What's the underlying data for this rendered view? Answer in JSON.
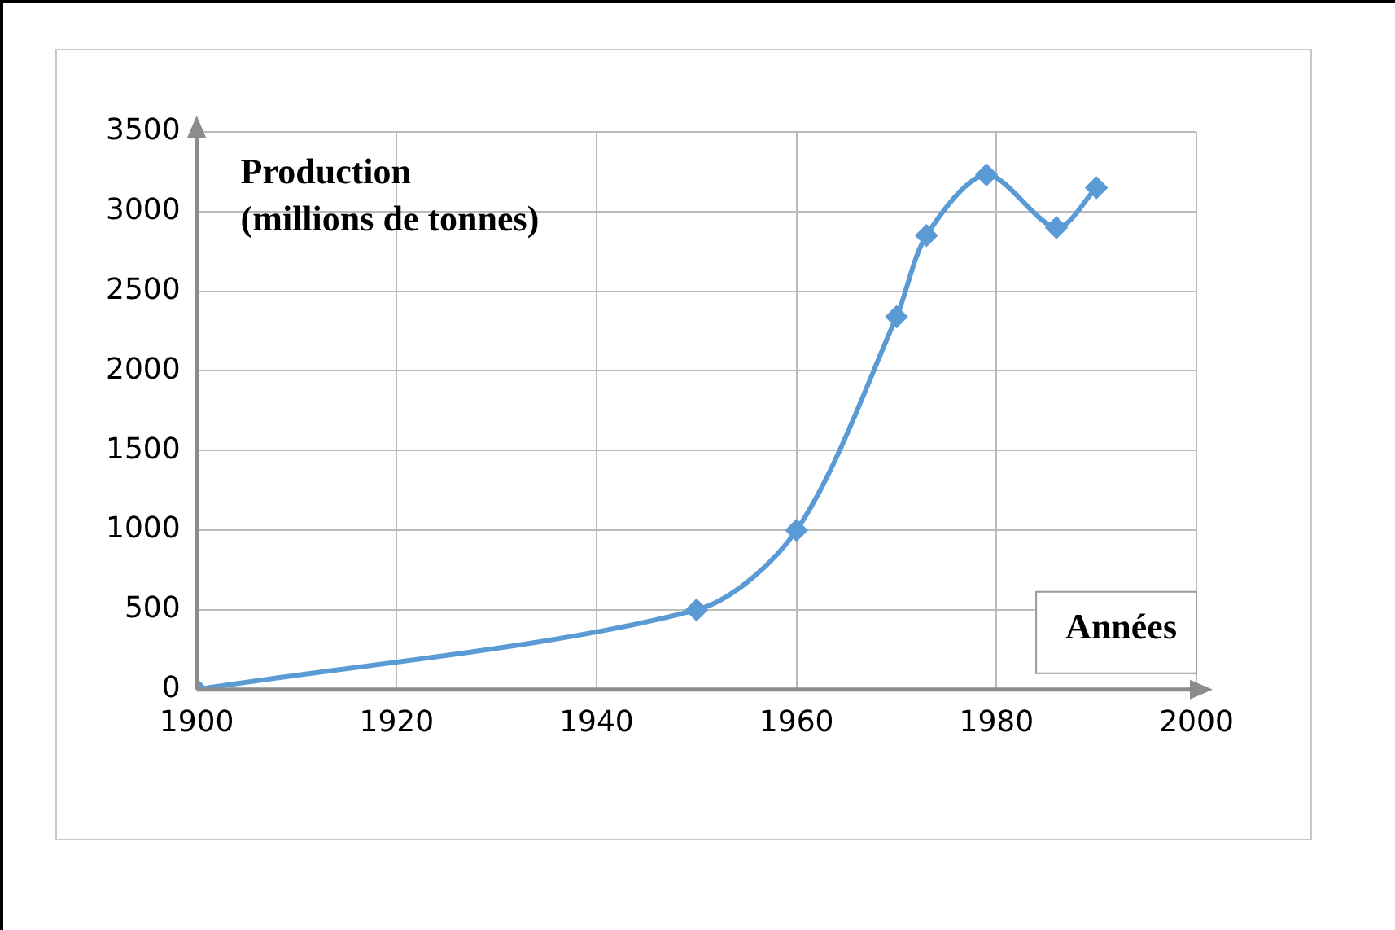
{
  "chart_data": {
    "type": "line",
    "xlabel": "Années",
    "ylabel": "Production\n(millions de tonnes)",
    "x": [
      1900,
      1950,
      1960,
      1970,
      1973,
      1979,
      1986,
      1990
    ],
    "series": [
      {
        "color": "#5b9bd5",
        "values": [
          0,
          500,
          1000,
          2340,
          2850,
          3230,
          2900,
          3150
        ]
      }
    ],
    "xlim": [
      1900,
      2000
    ],
    "xticks": [
      1900,
      1920,
      1940,
      1960,
      1980,
      2000
    ],
    "ylim": [
      0,
      3500
    ],
    "yticks": [
      0,
      500,
      1000,
      1500,
      2000,
      2500,
      3000,
      3500
    ],
    "grid": true,
    "marker": "diamond",
    "line_style": "solid"
  }
}
